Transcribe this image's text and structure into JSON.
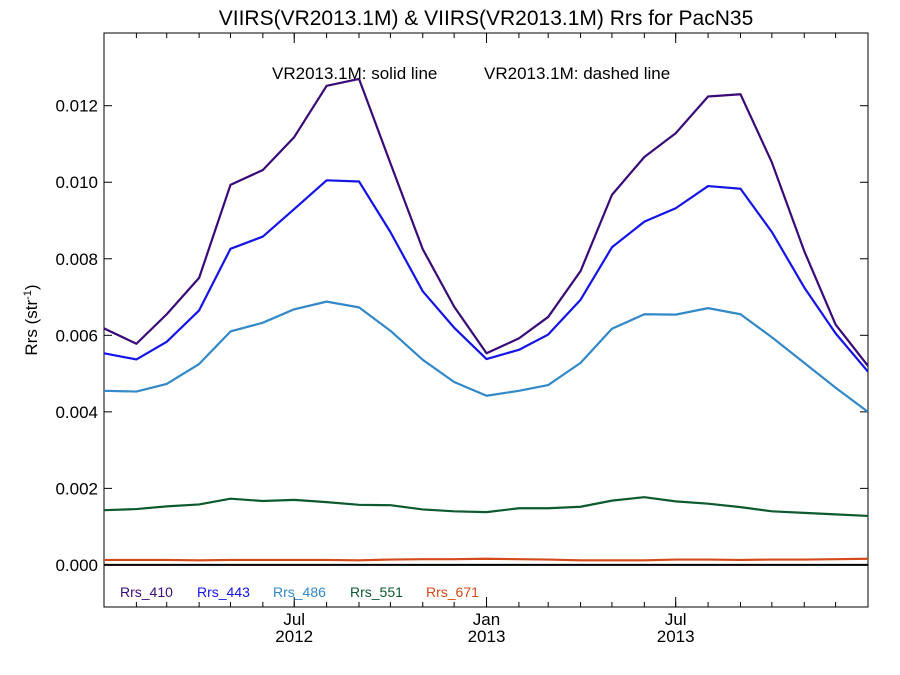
{
  "chart_data": {
    "type": "line",
    "title": "VIIRS(VR2013.1M) & VIIRS(VR2013.1M)  Rrs for PacN35",
    "annotation_solid": "VR2013.1M: solid line",
    "annotation_dashed": "VR2013.1M: dashed line",
    "ylabel_main": "Rrs (str",
    "ylabel_sup": "-1",
    "ylabel_end": ")",
    "xlim": [
      "2012-01-01",
      "2014-01-01"
    ],
    "ylim": [
      -0.0011,
      0.0139
    ],
    "yticks": [
      0.0,
      0.002,
      0.004,
      0.006,
      0.008,
      0.01,
      0.012
    ],
    "ytick_labels": [
      "0.000",
      "0.002",
      "0.004",
      "0.006",
      "0.008",
      "0.010",
      "0.012"
    ],
    "xticks": [
      {
        "date": "2012-07-01",
        "month": "Jul",
        "year": "2012"
      },
      {
        "date": "2013-01-01",
        "month": "Jan",
        "year": "2013"
      },
      {
        "date": "2013-07-01",
        "month": "Jul",
        "year": "2013"
      }
    ],
    "zero_line": true,
    "grid": false,
    "legend_position": "bottom-left",
    "x": [
      "2012-01-01",
      "2012-02-01",
      "2012-03-01",
      "2012-04-01",
      "2012-05-01",
      "2012-06-01",
      "2012-07-01",
      "2012-08-01",
      "2012-09-01",
      "2012-10-01",
      "2012-11-01",
      "2012-12-01",
      "2013-01-01",
      "2013-02-01",
      "2013-03-01",
      "2013-04-01",
      "2013-05-01",
      "2013-06-01",
      "2013-07-01",
      "2013-08-01",
      "2013-09-01",
      "2013-10-01",
      "2013-11-01",
      "2013-12-01",
      "2014-01-01"
    ],
    "series": [
      {
        "name": "Rrs_410",
        "color": "#3a0a78",
        "values": [
          0.00618,
          0.00578,
          0.00655,
          0.0075,
          0.00993,
          0.01032,
          0.01118,
          0.01252,
          0.0127,
          0.0105,
          0.00825,
          0.00675,
          0.00553,
          0.00592,
          0.00648,
          0.00768,
          0.00967,
          0.01066,
          0.01128,
          0.01224,
          0.0123,
          0.01052,
          0.0082,
          0.00628,
          0.0052
        ]
      },
      {
        "name": "Rrs_443",
        "color": "#1414e6",
        "values": [
          0.00553,
          0.00537,
          0.00583,
          0.00665,
          0.00826,
          0.00858,
          0.0093,
          0.01005,
          0.01002,
          0.0087,
          0.00715,
          0.0062,
          0.00538,
          0.00562,
          0.00602,
          0.00693,
          0.0083,
          0.00897,
          0.00932,
          0.0099,
          0.00983,
          0.0087,
          0.00725,
          0.00605,
          0.00505
        ]
      },
      {
        "name": "Rrs_486",
        "color": "#3388c8",
        "values": [
          0.00455,
          0.00453,
          0.00473,
          0.00525,
          0.0061,
          0.00633,
          0.00668,
          0.00688,
          0.00673,
          0.00612,
          0.00536,
          0.00478,
          0.00442,
          0.00455,
          0.0047,
          0.00528,
          0.00617,
          0.00655,
          0.00654,
          0.00671,
          0.00655,
          0.00595,
          0.00528,
          0.00463,
          0.004
        ]
      },
      {
        "name": "Rrs_551",
        "color": "#0c5a2e",
        "values": [
          0.00143,
          0.00146,
          0.00153,
          0.00158,
          0.00173,
          0.00167,
          0.0017,
          0.00164,
          0.00157,
          0.00156,
          0.00145,
          0.0014,
          0.00138,
          0.00148,
          0.00148,
          0.00152,
          0.00168,
          0.00177,
          0.00166,
          0.0016,
          0.00151,
          0.0014,
          0.00136,
          0.00132,
          0.00128
        ]
      },
      {
        "name": "Rrs_671",
        "color": "#d44a1a",
        "values": [
          0.00013,
          0.00013,
          0.00013,
          0.00012,
          0.00013,
          0.00013,
          0.00013,
          0.00013,
          0.00012,
          0.00014,
          0.00015,
          0.00015,
          0.00016,
          0.00015,
          0.00014,
          0.00012,
          0.00012,
          0.00012,
          0.00014,
          0.00014,
          0.00013,
          0.00014,
          0.00014,
          0.00015,
          0.00016
        ]
      }
    ]
  }
}
